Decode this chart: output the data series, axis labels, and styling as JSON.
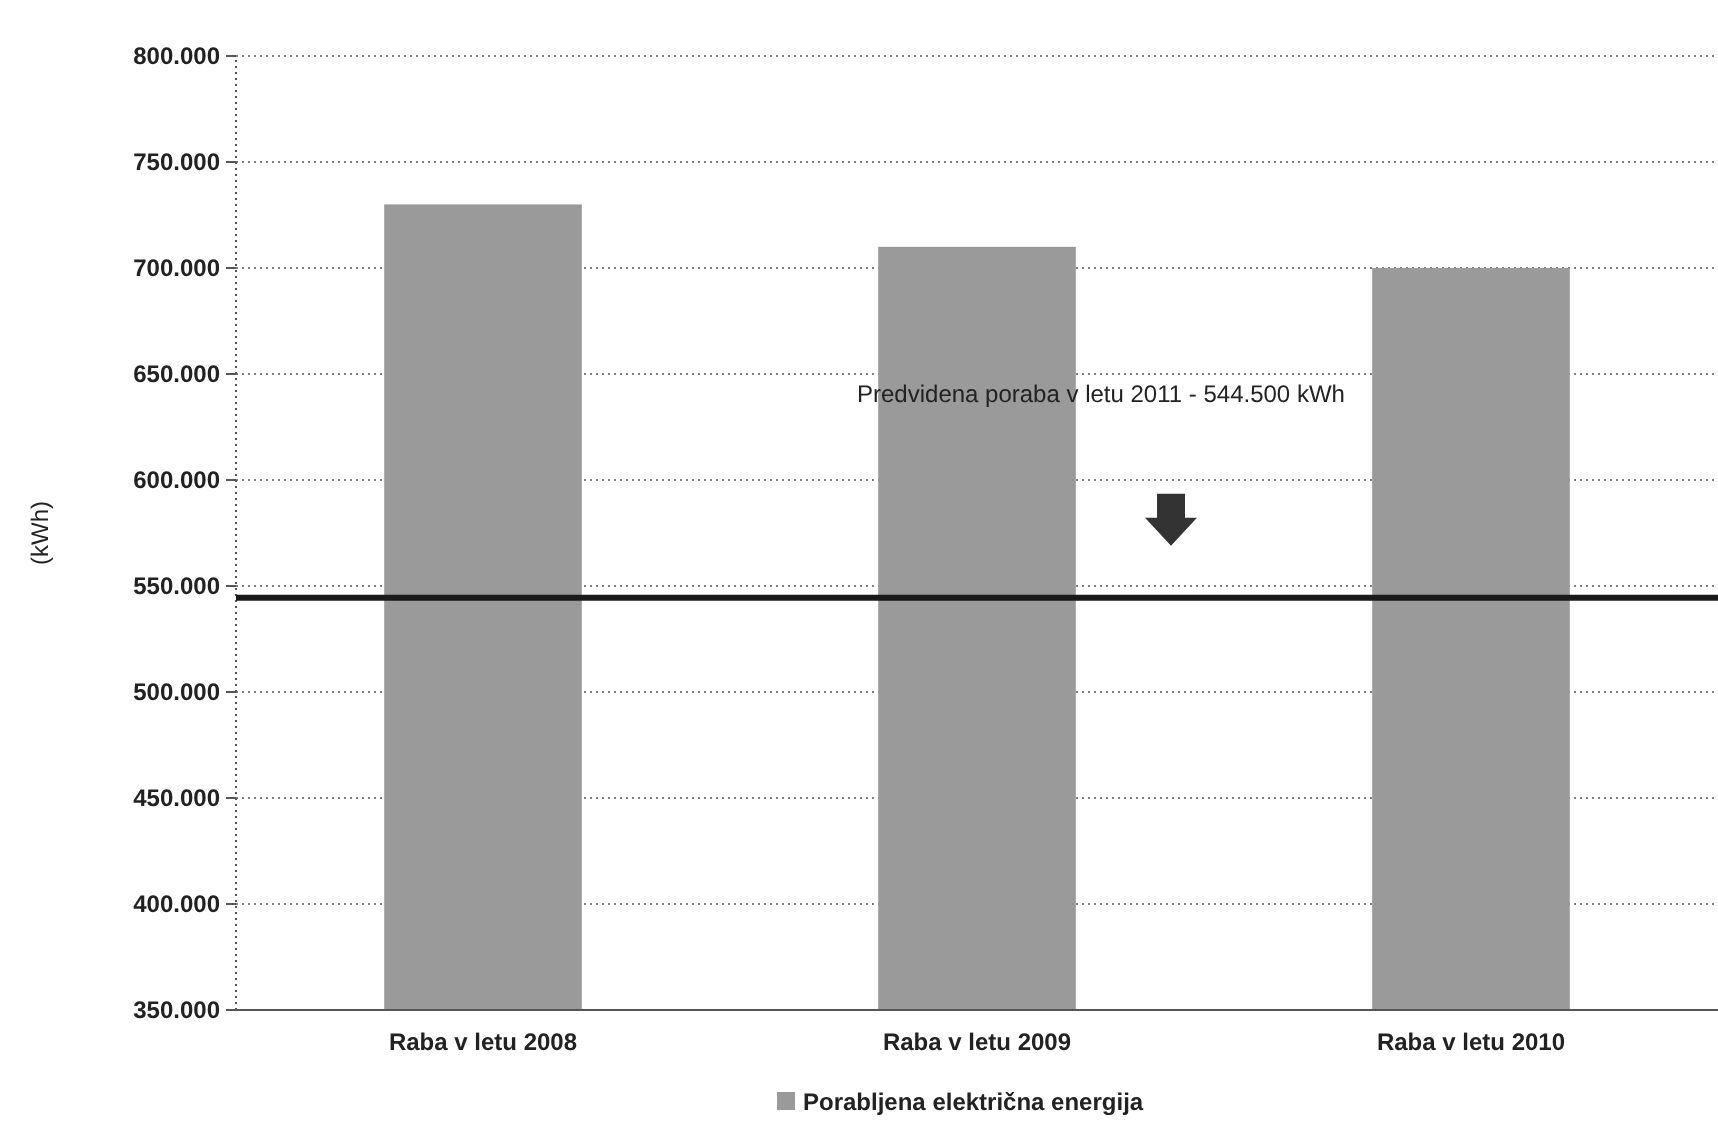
{
  "chart_data": {
    "type": "bar",
    "ylabel": "(kWh)",
    "categories": [
      "Raba v letu 2008",
      "Raba v letu 2009",
      "Raba v letu 2010"
    ],
    "series": [
      {
        "name": "Porabljena električna energija",
        "color": "#9a9a9a",
        "values": [
          730000,
          710000,
          700000
        ]
      }
    ],
    "ylim": [
      350000,
      800000
    ],
    "yticks": [
      {
        "value": 350000,
        "label": "350.000"
      },
      {
        "value": 400000,
        "label": "400.000"
      },
      {
        "value": 450000,
        "label": "450.000"
      },
      {
        "value": 500000,
        "label": "500.000"
      },
      {
        "value": 550000,
        "label": "550.000"
      },
      {
        "value": 600000,
        "label": "600.000"
      },
      {
        "value": 650000,
        "label": "650.000"
      },
      {
        "value": 700000,
        "label": "700.000"
      },
      {
        "value": 750000,
        "label": "750.000"
      },
      {
        "value": 800000,
        "label": "800.000"
      }
    ],
    "ref_lines": [
      {
        "axis": "y",
        "value": 544500,
        "label": "Predvidena poraba v letu 2011 - 544.500 kWh",
        "color": "#1a1a1a"
      }
    ],
    "grid": "y",
    "legend": "bottom"
  }
}
